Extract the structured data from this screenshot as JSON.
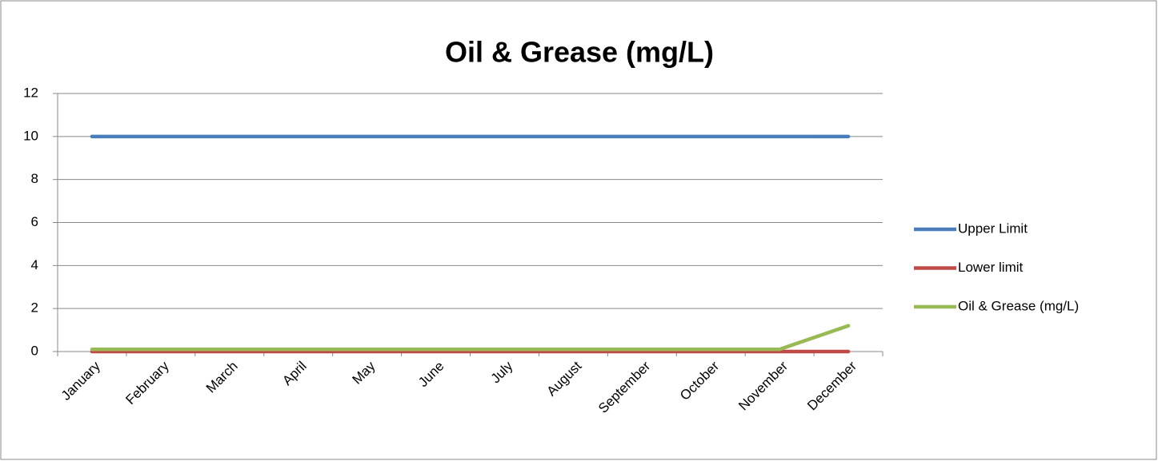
{
  "chart_data": {
    "type": "line",
    "title": "Oil & Grease (mg/L)",
    "categories": [
      "January",
      "February",
      "March",
      "April",
      "May",
      "June",
      "July",
      "August",
      "September",
      "October",
      "November",
      "December"
    ],
    "series": [
      {
        "name": "Upper Limit",
        "color": "#4a7ebb",
        "values": [
          10,
          10,
          10,
          10,
          10,
          10,
          10,
          10,
          10,
          10,
          10,
          10
        ]
      },
      {
        "name": "Lower limit",
        "color": "#be4b48",
        "values": [
          0,
          0,
          0,
          0,
          0,
          0,
          0,
          0,
          0,
          0,
          0,
          0
        ]
      },
      {
        "name": "Oil & Grease (mg/L)",
        "color": "#98b954",
        "values": [
          0.1,
          0.1,
          0.1,
          0.1,
          0.1,
          0.1,
          0.1,
          0.1,
          0.1,
          0.1,
          0.1,
          1.2
        ]
      }
    ],
    "ylim": [
      0,
      12
    ],
    "yticks": [
      0,
      2,
      4,
      6,
      8,
      10,
      12
    ],
    "grid": true,
    "legend": "right"
  }
}
